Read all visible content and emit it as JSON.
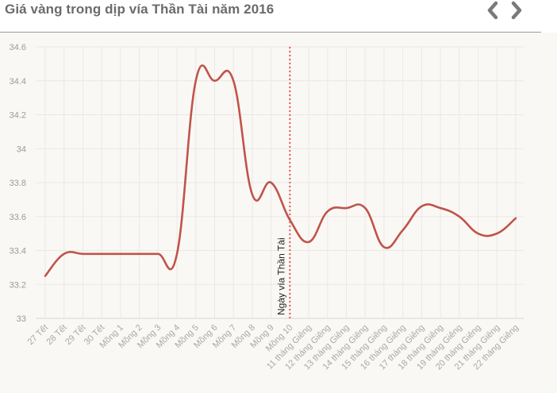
{
  "header": {
    "title": "Giá vàng trong dịp vía Thần Tài năm 2016",
    "prev_icon": "chevron-left-icon",
    "next_icon": "chevron-right-icon"
  },
  "colors": {
    "line": "#c0544a",
    "marker": "#e25b57",
    "grid": "#ebe8e4",
    "nav": "#7a7a7a"
  },
  "chart_data": {
    "type": "line",
    "title": "Giá vàng trong dịp vía Thần Tài năm 2016",
    "xlabel": "",
    "ylabel": "",
    "categories": [
      "27 Tết",
      "28 Tết",
      "29 Tết",
      "30 Tết",
      "Mồng 1",
      "Mồng 2",
      "Mồng 3",
      "Mồng 4",
      "Mồng 5",
      "Mồng 6",
      "Mồng 7",
      "Mồng 8",
      "Mồng 9",
      "Mồng 10",
      "11 tháng Giêng",
      "12 tháng Giêng",
      "13 tháng Giêng",
      "14 tháng Giêng",
      "15 tháng Giêng",
      "16 tháng Giêng",
      "17 tháng Giêng",
      "18 tháng Giêng",
      "19 tháng Giêng",
      "20 tháng Giêng",
      "21 tháng Giêng",
      "22 tháng Giêng"
    ],
    "series": [
      {
        "values": [
          33.25,
          33.38,
          33.38,
          33.38,
          33.38,
          33.38,
          33.38,
          33.38,
          34.4,
          34.4,
          34.4,
          33.73,
          33.8,
          33.58,
          33.45,
          33.63,
          33.65,
          33.65,
          33.42,
          33.52,
          33.66,
          33.65,
          33.6,
          33.5,
          33.5,
          33.59
        ]
      }
    ],
    "ylim": [
      33,
      34.6
    ],
    "yticks": [
      "33",
      "33.2",
      "33.4",
      "33.6",
      "33.8",
      "34",
      "34.2",
      "34.4",
      "34.6"
    ],
    "grid": true,
    "marker_line": {
      "category": "Mồng 10",
      "label": "Ngày vía Thần Tài"
    }
  }
}
